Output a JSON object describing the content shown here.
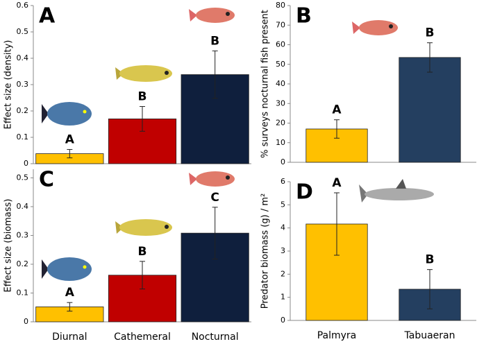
{
  "chart_data": [
    {
      "type": "bar",
      "panel": "A",
      "ylabel": "Effect size (density)",
      "categories": [
        null,
        null,
        null
      ],
      "values": [
        0.038,
        0.17,
        0.338
      ],
      "errors": [
        0.016,
        0.047,
        0.09
      ],
      "letters": [
        "A",
        "B",
        "B"
      ],
      "colors": [
        "#FFC000",
        "#C00000",
        "#0F1F3D"
      ],
      "ylim": [
        0,
        0.6
      ],
      "yticks": [
        0,
        0.1,
        0.2,
        0.3,
        0.4,
        0.5,
        0.6
      ]
    },
    {
      "type": "bar",
      "panel": "B",
      "ylabel": "% surveys nocturnal fish present",
      "categories": [
        null,
        null
      ],
      "values": [
        17,
        53.5
      ],
      "errors": [
        4.7,
        7.5
      ],
      "letters": [
        "A",
        "B"
      ],
      "colors": [
        "#FFC000",
        "#243F60"
      ],
      "ylim": [
        0,
        80
      ],
      "yticks": [
        0,
        10,
        20,
        30,
        40,
        50,
        60,
        70,
        80
      ]
    },
    {
      "type": "bar",
      "panel": "C",
      "ylabel": "Effect size (biomass)",
      "categories": [
        "Diurnal",
        "Cathemeral",
        "Nocturnal"
      ],
      "values": [
        0.052,
        0.162,
        0.308
      ],
      "errors": [
        0.015,
        0.048,
        0.09
      ],
      "letters": [
        "A",
        "B",
        "C"
      ],
      "colors": [
        "#FFC000",
        "#C00000",
        "#0F1F3D"
      ],
      "ylim": [
        0,
        0.53
      ],
      "yticks": [
        0,
        0.1,
        0.2,
        0.3,
        0.4,
        0.5
      ]
    },
    {
      "type": "bar",
      "panel": "D",
      "ylabel": "Predator biomass (g) / m²",
      "categories": [
        "Palmyra",
        "Tabuaeran"
      ],
      "values": [
        4.17,
        1.35
      ],
      "errors": [
        1.35,
        0.85
      ],
      "letters": [
        "A",
        "B"
      ],
      "colors": [
        "#FFC000",
        "#243F60"
      ],
      "ylim": [
        0,
        6
      ],
      "yticks": [
        0,
        1,
        2,
        3,
        4,
        5,
        6
      ]
    }
  ]
}
